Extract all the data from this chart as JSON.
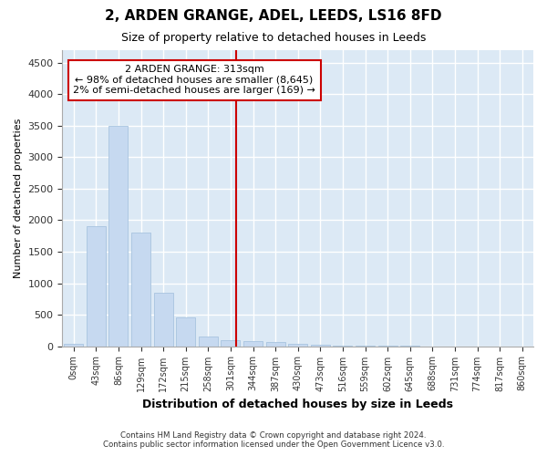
{
  "title": "2, ARDEN GRANGE, ADEL, LEEDS, LS16 8FD",
  "subtitle": "Size of property relative to detached houses in Leeds",
  "xlabel": "Distribution of detached houses by size in Leeds",
  "ylabel": "Number of detached properties",
  "bar_labels": [
    "0sqm",
    "43sqm",
    "86sqm",
    "129sqm",
    "172sqm",
    "215sqm",
    "258sqm",
    "301sqm",
    "344sqm",
    "387sqm",
    "430sqm",
    "473sqm",
    "516sqm",
    "559sqm",
    "602sqm",
    "645sqm",
    "688sqm",
    "731sqm",
    "774sqm",
    "817sqm",
    "860sqm"
  ],
  "bar_values": [
    30,
    1900,
    3500,
    1800,
    850,
    450,
    150,
    100,
    80,
    60,
    40,
    20,
    10,
    5,
    3,
    2,
    1,
    1,
    0,
    0,
    0
  ],
  "bar_color": "#c6d9f0",
  "bar_edge_color": "#a8c4e0",
  "ylim": [
    0,
    4700
  ],
  "yticks": [
    0,
    500,
    1000,
    1500,
    2000,
    2500,
    3000,
    3500,
    4000,
    4500
  ],
  "vline_x": 7.26,
  "vline_color": "#cc0000",
  "annotation_title": "2 ARDEN GRANGE: 313sqm",
  "annotation_line1": "← 98% of detached houses are smaller (8,645)",
  "annotation_line2": "2% of semi-detached houses are larger (169) →",
  "annotation_box_color": "#ffffff",
  "annotation_border_color": "#cc0000",
  "footer1": "Contains HM Land Registry data © Crown copyright and database right 2024.",
  "footer2": "Contains public sector information licensed under the Open Government Licence v3.0.",
  "bg_color": "#dce9f5",
  "fig_color": "#ffffff",
  "grid_color": "#ffffff",
  "title_fontsize": 11,
  "subtitle_fontsize": 9
}
